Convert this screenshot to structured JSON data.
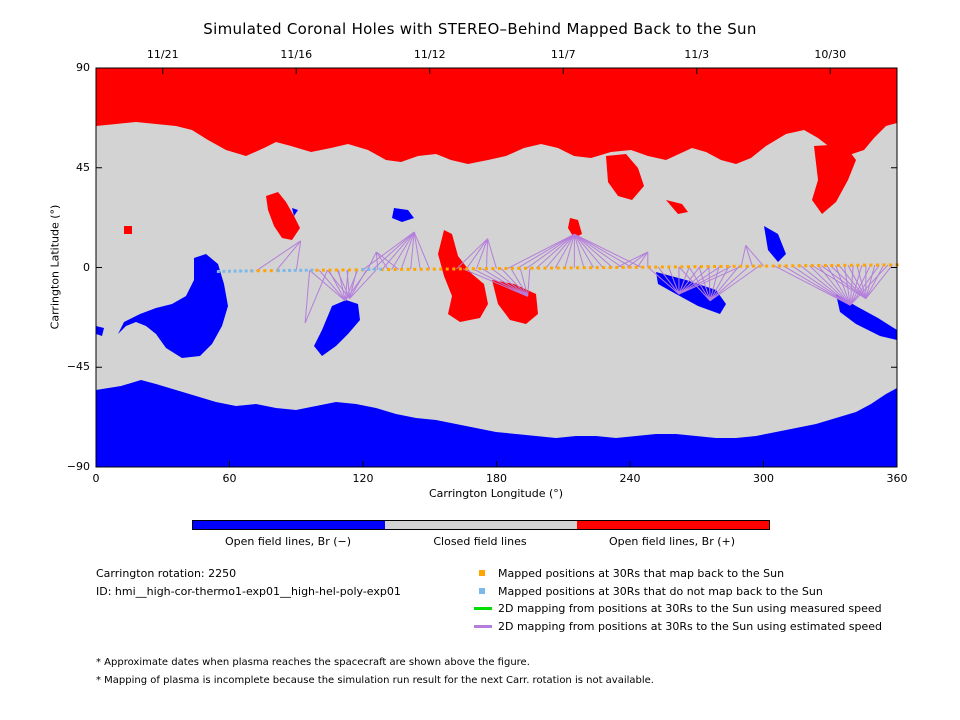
{
  "chart_data": {
    "type": "map",
    "title": "Simulated Coronal Holes with STEREO–Behind Mapped Back to the Sun",
    "xlabel": "Carrington Longitude (°)",
    "ylabel": "Carrington Latitude (°)",
    "xlim": [
      0,
      360
    ],
    "ylim": [
      -90,
      90
    ],
    "x_ticks": [
      0,
      60,
      120,
      180,
      240,
      300,
      360
    ],
    "y_ticks": [
      90,
      45,
      0,
      -45,
      -90
    ],
    "top_axis": {
      "labels": [
        {
          "lon": 30,
          "text": "11/21"
        },
        {
          "lon": 90,
          "text": "11/16"
        },
        {
          "lon": 150,
          "text": "11/12"
        },
        {
          "lon": 210,
          "text": "11/7"
        },
        {
          "lon": 270,
          "text": "11/3"
        },
        {
          "lon": 330,
          "text": "10/30"
        }
      ]
    },
    "colorbar": {
      "segments": [
        {
          "label": "Open field lines, Br (−)",
          "color": "#0000ff"
        },
        {
          "label": "Closed field lines",
          "color": "#d3d3d3"
        },
        {
          "label": "Open field lines, Br (+)",
          "color": "#ff0000"
        }
      ]
    },
    "mapped_points": {
      "map_back": {
        "color": "#ffa500",
        "lon_start": 70,
        "lat_start": -1.5,
        "lon_end": 360,
        "lat_end": 1.2,
        "count": 100,
        "gap": [
          {
            "from": 82,
            "to": 97
          },
          {
            "from": 120,
            "to": 128
          }
        ]
      },
      "no_map_back": {
        "color": "#7cb9e8",
        "ranges": [
          {
            "lon_start": 55,
            "lat_start": -1.8,
            "lon_end": 70,
            "lat_end": -1.5
          },
          {
            "lon_start": 82,
            "lat_start": -1.4,
            "lon_end": 97,
            "lat_end": -1.2
          },
          {
            "lon_start": 120,
            "lat_start": -0.9,
            "lon_end": 128,
            "lat_end": -0.8
          }
        ]
      }
    },
    "mapping_lines": {
      "color": "#b57edc",
      "fans": [
        {
          "target": [
            92,
            12
          ],
          "from_lon": [
            72,
            90
          ],
          "n": 3
        },
        {
          "target": [
            94,
            -25
          ],
          "from_lon": [
            96,
            104
          ],
          "n": 2
        },
        {
          "target": [
            112,
            -15
          ],
          "from_lon": [
            96,
            122
          ],
          "n": 7
        },
        {
          "target": [
            114,
            -14
          ],
          "from_lon": [
            104,
            126
          ],
          "n": 6
        },
        {
          "target": [
            126,
            7
          ],
          "from_lon": [
            122,
            136
          ],
          "n": 4
        },
        {
          "target": [
            143,
            16
          ],
          "from_lon": [
            120,
            150
          ],
          "n": 8
        },
        {
          "target": [
            176,
            13
          ],
          "from_lon": [
            162,
            180
          ],
          "n": 5
        },
        {
          "target": [
            194,
            -13
          ],
          "from_lon": [
            165,
            195
          ],
          "n": 8
        },
        {
          "target": [
            215,
            15
          ],
          "from_lon": [
            185,
            245
          ],
          "n": 15
        },
        {
          "target": [
            248,
            7
          ],
          "from_lon": [
            234,
            248
          ],
          "n": 4
        },
        {
          "target": [
            262,
            -12
          ],
          "from_lon": [
            248,
            290
          ],
          "n": 10
        },
        {
          "target": [
            276,
            -15
          ],
          "from_lon": [
            262,
            298
          ],
          "n": 9
        },
        {
          "target": [
            292,
            10
          ],
          "from_lon": [
            290,
            300
          ],
          "n": 3
        },
        {
          "target": [
            339,
            -17
          ],
          "from_lon": [
            305,
            356
          ],
          "n": 14
        },
        {
          "target": [
            346,
            -14
          ],
          "from_lon": [
            322,
            358
          ],
          "n": 10
        }
      ]
    },
    "legend": [
      {
        "label": "Mapped positions at 30Rs that map back to the Sun",
        "color": "#ffa500",
        "kind": "square"
      },
      {
        "label": "Mapped positions at 30Rs that do not map back to the Sun",
        "color": "#7cb9e8",
        "kind": "square"
      },
      {
        "label": "2D mapping from positions at 30Rs to the Sun using measured speed",
        "color": "#00dd00",
        "kind": "line"
      },
      {
        "label": "2D mapping from positions at 30Rs to the Sun using estimated speed",
        "color": "#b57edc",
        "kind": "line"
      }
    ]
  },
  "info": {
    "rotation": "Carrington rotation: 2250",
    "run_id": "ID: hmi__high-cor-thermo1-exp01__high-hel-poly-exp01"
  },
  "notes": {
    "note1": "* Approximate dates when plasma reaches the spacecraft are shown above the figure.",
    "note2": "* Mapping of plasma is incomplete because the simulation run result for the next Carr. rotation is not available."
  },
  "colors": {
    "closed": "#d3d3d3",
    "open_neg": "#0000ff",
    "open_pos": "#ff0000"
  }
}
